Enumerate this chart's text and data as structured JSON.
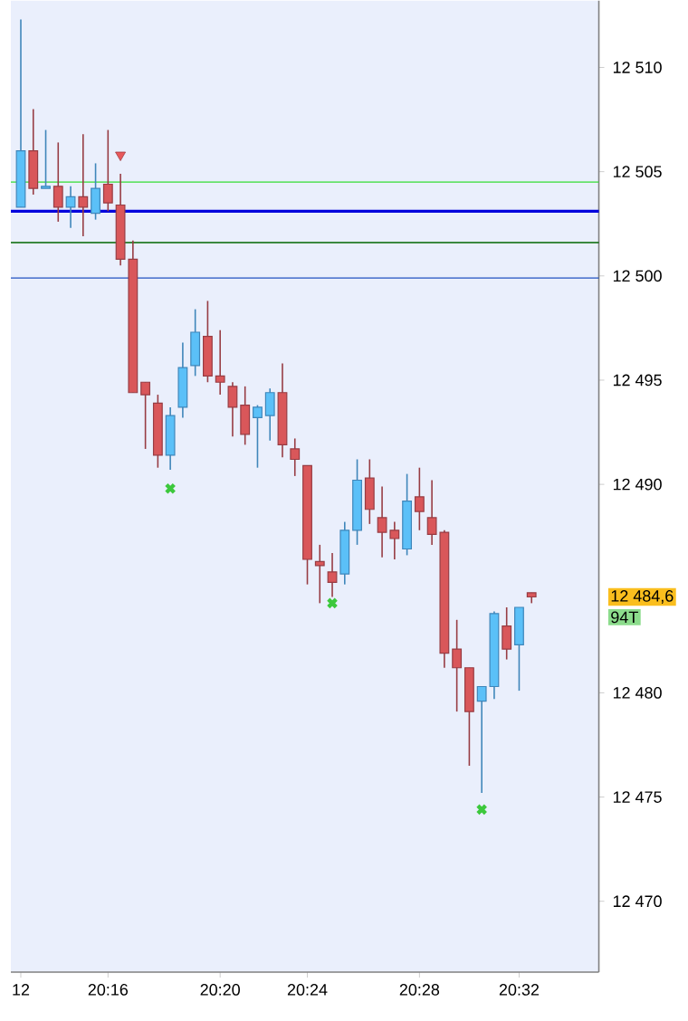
{
  "chart_data": {
    "type": "candlestick",
    "categories": [
      "12",
      null,
      null,
      null,
      null,
      null,
      null,
      "20:16",
      null,
      null,
      null,
      null,
      null,
      null,
      null,
      null,
      "20:20",
      null,
      null,
      null,
      null,
      null,
      null,
      "20:24",
      null,
      null,
      null,
      null,
      null,
      null,
      null,
      null,
      "20:28",
      null,
      null,
      null,
      null,
      null,
      null,
      null,
      "20:32",
      null
    ],
    "ohlc": [
      [
        12503.3,
        12512.3,
        12503.3,
        12506.0
      ],
      [
        12506.0,
        12508.0,
        12503.9,
        12504.2
      ],
      [
        12504.2,
        12507.0,
        12504.2,
        12504.3
      ],
      [
        12504.3,
        12506.4,
        12502.6,
        12503.3
      ],
      [
        12503.3,
        12504.3,
        12502.3,
        12503.8
      ],
      [
        12503.8,
        12506.8,
        12501.9,
        12503.3
      ],
      [
        12503.0,
        12505.4,
        12502.7,
        12504.2
      ],
      [
        12504.4,
        12507.0,
        12503.1,
        12503.5
      ],
      [
        12503.4,
        12504.9,
        12500.5,
        12500.8
      ],
      [
        12500.8,
        12501.7,
        12494.4,
        12494.4
      ],
      [
        12494.9,
        12494.9,
        12491.7,
        12494.3
      ],
      [
        12493.9,
        12494.3,
        12490.8,
        12491.4
      ],
      [
        12491.4,
        12493.7,
        12490.7,
        12493.3
      ],
      [
        12493.7,
        12496.8,
        12493.2,
        12495.6
      ],
      [
        12495.7,
        12498.4,
        12495.2,
        12497.3
      ],
      [
        12497.1,
        12498.8,
        12494.9,
        12495.2
      ],
      [
        12495.2,
        12497.4,
        12494.3,
        12494.9
      ],
      [
        12494.7,
        12494.9,
        12492.3,
        12493.7
      ],
      [
        12493.8,
        12494.7,
        12491.9,
        12492.4
      ],
      [
        12493.2,
        12493.8,
        12490.8,
        12493.7
      ],
      [
        12493.3,
        12494.6,
        12492.1,
        12494.4
      ],
      [
        12494.4,
        12495.8,
        12491.3,
        12491.9
      ],
      [
        12491.7,
        12492.2,
        12490.4,
        12491.2
      ],
      [
        12490.9,
        12490.9,
        12485.2,
        12486.4
      ],
      [
        12486.3,
        12487.1,
        12484.3,
        12486.1
      ],
      [
        12485.8,
        12486.7,
        12484.6,
        12485.3
      ],
      [
        12485.7,
        12488.2,
        12485.2,
        12487.8
      ],
      [
        12487.8,
        12491.2,
        12487.1,
        12490.2
      ],
      [
        12490.3,
        12491.2,
        12488.1,
        12488.8
      ],
      [
        12488.4,
        12489.9,
        12486.5,
        12487.7
      ],
      [
        12487.8,
        12488.2,
        12486.4,
        12487.4
      ],
      [
        12486.9,
        12490.5,
        12486.6,
        12489.2
      ],
      [
        12489.4,
        12490.8,
        12487.8,
        12488.7
      ],
      [
        12488.4,
        12490.2,
        12487.1,
        12487.6
      ],
      [
        12487.7,
        12487.8,
        12481.2,
        12481.9
      ],
      [
        12482.1,
        12483.5,
        12479.1,
        12481.2
      ],
      [
        12481.2,
        12481.2,
        12476.5,
        12479.1
      ],
      [
        12479.6,
        12480.3,
        12475.2,
        12480.3
      ],
      [
        12480.3,
        12483.9,
        12479.7,
        12483.8
      ],
      [
        12483.2,
        12484.1,
        12481.6,
        12482.1
      ],
      [
        12482.3,
        12484.1,
        12480.1,
        12484.1
      ],
      [
        12484.8,
        12484.8,
        12484.3,
        12484.6
      ]
    ],
    "colors": [
      "#5bc0f8",
      "#d9575a",
      "#5bc0f8",
      "#d9575a",
      "#5bc0f8",
      "#d9575a",
      "#5bc0f8",
      "#d9575a",
      "#d9575a",
      "#d9575a",
      "#d9575a",
      "#d9575a",
      "#5bc0f8",
      "#5bc0f8",
      "#5bc0f8",
      "#d9575a",
      "#d9575a",
      "#d9575a",
      "#d9575a",
      "#5bc0f8",
      "#5bc0f8",
      "#d9575a",
      "#d9575a",
      "#d9575a",
      "#d9575a",
      "#d9575a",
      "#5bc0f8",
      "#5bc0f8",
      "#d9575a",
      "#d9575a",
      "#d9575a",
      "#5bc0f8",
      "#d9575a",
      "#d9575a",
      "#d9575a",
      "#d9575a",
      "#d9575a",
      "#5bc0f8",
      "#5bc0f8",
      "#d9575a",
      "#5bc0f8",
      "#d9575a"
    ],
    "series": [
      {
        "type": "scatter",
        "marker": "triangle",
        "color": "#e8585a",
        "values": [
          null,
          null,
          null,
          null,
          null,
          null,
          null,
          null,
          12505.8,
          null,
          null,
          null,
          null,
          null,
          null,
          null,
          null,
          null,
          null,
          null,
          null,
          null,
          null,
          null,
          null,
          null,
          null,
          null,
          null,
          null,
          null,
          null,
          null,
          null,
          null,
          null,
          null,
          null,
          null,
          null,
          null,
          null
        ]
      },
      {
        "type": "scatter",
        "marker": "cross",
        "color": "#3cc83c",
        "values": [
          null,
          null,
          null,
          null,
          null,
          null,
          null,
          null,
          null,
          null,
          null,
          null,
          12489.8,
          null,
          null,
          null,
          null,
          null,
          null,
          null,
          null,
          null,
          null,
          null,
          null,
          12484.3,
          null,
          null,
          null,
          null,
          null,
          null,
          null,
          null,
          null,
          null,
          null,
          12474.4,
          null,
          null,
          null,
          null
        ]
      }
    ],
    "ylim": [
      12466.6,
      12513.2
    ],
    "yticks": [
      {
        "value": 12470,
        "label": "12 470"
      },
      {
        "value": 12475,
        "label": "12 475"
      },
      {
        "value": 12480,
        "label": "12 480"
      },
      {
        "value": 12490,
        "label": "12 490"
      },
      {
        "value": 12495,
        "label": "12 495"
      },
      {
        "value": 12500,
        "label": "12 500"
      },
      {
        "value": 12505,
        "label": "12 505"
      },
      {
        "value": 12510,
        "label": "12 510"
      }
    ],
    "ref_lines": [
      {
        "axis": "y",
        "value": 12504.5,
        "color": "#33dd33"
      },
      {
        "axis": "y",
        "value": 12503.1,
        "color": "#0000dd"
      },
      {
        "axis": "y",
        "value": 12501.6,
        "color": "#006600"
      },
      {
        "axis": "y",
        "value": 12499.9,
        "color": "#2050c0"
      }
    ],
    "annotations": [
      "12 484,6",
      "94T"
    ]
  }
}
